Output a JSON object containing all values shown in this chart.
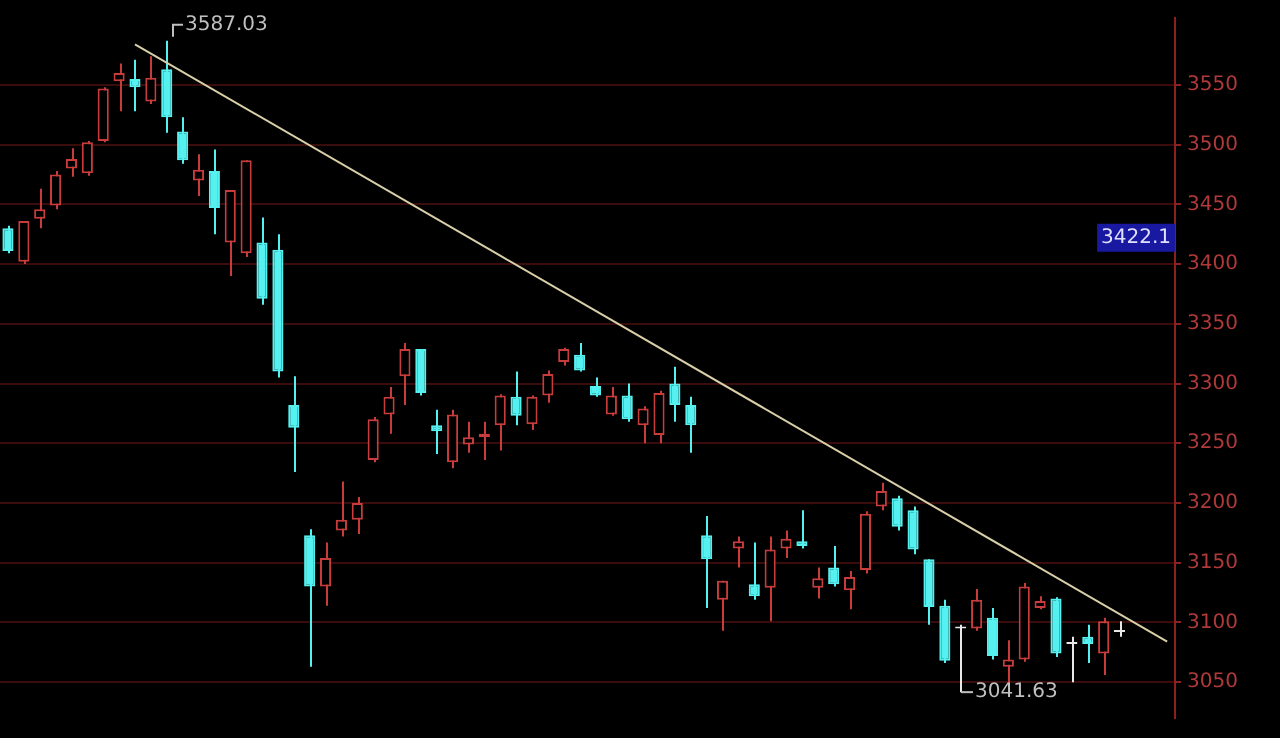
{
  "chart_data": {
    "type": "candlestick",
    "categories": [
      null,
      null,
      null,
      null,
      null,
      null,
      null,
      null,
      null,
      null,
      null,
      null,
      null,
      null,
      null,
      null,
      null,
      null,
      null,
      null,
      null,
      null,
      null,
      null,
      null,
      null,
      null,
      null,
      null,
      null,
      null,
      null,
      null,
      null,
      null,
      null,
      null,
      null,
      null,
      null,
      null,
      null,
      null,
      null,
      null,
      null,
      null,
      null,
      null,
      null,
      null,
      null,
      null,
      null,
      null,
      null,
      null,
      null,
      null,
      null,
      null,
      null,
      null,
      null,
      null,
      null,
      null,
      null,
      null,
      null,
      null,
      null,
      null,
      null
    ],
    "ohlc": [
      [
        3430,
        3432,
        3409,
        3411
      ],
      [
        3402,
        3436,
        3400,
        3436
      ],
      [
        3438,
        3463,
        3430,
        3446
      ],
      [
        3449,
        3478,
        3446,
        3475
      ],
      [
        3480,
        3497,
        3473,
        3488
      ],
      [
        3476,
        3503,
        3474,
        3502
      ],
      [
        3503,
        3548,
        3502,
        3547
      ],
      [
        3553,
        3568,
        3528,
        3560
      ],
      [
        3555,
        3571,
        3528,
        3548
      ],
      [
        3536,
        3574,
        3534,
        3556
      ],
      [
        3563,
        3587.03,
        3510,
        3523
      ],
      [
        3511,
        3523,
        3484,
        3487
      ],
      [
        3470,
        3492,
        3457,
        3479
      ],
      [
        3478,
        3496,
        3425,
        3447
      ],
      [
        3418,
        3462,
        3390,
        3462
      ],
      [
        3409,
        3487,
        3406,
        3487
      ],
      [
        3418,
        3439,
        3366,
        3371
      ],
      [
        3412,
        3425,
        3305,
        3310
      ],
      [
        3282,
        3306,
        3226,
        3263
      ],
      [
        3173,
        3178,
        3063,
        3130
      ],
      [
        3130,
        3167,
        3114,
        3154
      ],
      [
        3177,
        3218,
        3172,
        3186
      ],
      [
        3186,
        3205,
        3174,
        3200
      ],
      [
        3236,
        3272,
        3234,
        3270
      ],
      [
        3274,
        3297,
        3258,
        3289
      ],
      [
        3306,
        3334,
        3282,
        3329
      ],
      [
        3329,
        3329,
        3290,
        3292
      ],
      [
        3265,
        3278,
        3241,
        3260
      ],
      [
        3234,
        3278,
        3229,
        3274
      ],
      [
        3249,
        3268,
        3242,
        3255
      ],
      [
        3255,
        3268,
        3236,
        3258
      ],
      [
        3265,
        3291,
        3244,
        3290
      ],
      [
        3289,
        3310,
        3265,
        3273
      ],
      [
        3266,
        3290,
        3261,
        3289
      ],
      [
        3290,
        3311,
        3284,
        3308
      ],
      [
        3318,
        3330,
        3315,
        3329
      ],
      [
        3324,
        3334,
        3310,
        3311
      ],
      [
        3298,
        3305,
        3289,
        3290
      ],
      [
        3274,
        3297,
        3273,
        3290
      ],
      [
        3290,
        3300,
        3268,
        3270
      ],
      [
        3265,
        3281,
        3250,
        3279
      ],
      [
        3257,
        3294,
        3250,
        3292
      ],
      [
        3300,
        3314,
        3268,
        3282
      ],
      [
        3282,
        3289,
        3242,
        3265
      ],
      [
        3173,
        3189,
        3112,
        3153
      ],
      [
        3119,
        3135,
        3093,
        3135
      ],
      [
        3162,
        3172,
        3146,
        3168
      ],
      [
        3132,
        3167,
        3119,
        3122
      ],
      [
        3129,
        3172,
        3101,
        3161
      ],
      [
        3162,
        3177,
        3154,
        3170
      ],
      [
        3168,
        3194,
        3162,
        3164
      ],
      [
        3129,
        3146,
        3120,
        3137
      ],
      [
        3146,
        3164,
        3130,
        3132
      ],
      [
        3127,
        3143,
        3111,
        3138
      ],
      [
        3144,
        3193,
        3141,
        3191
      ],
      [
        3197,
        3217,
        3194,
        3210
      ],
      [
        3204,
        3206,
        3177,
        3180
      ],
      [
        3194,
        3197,
        3157,
        3161
      ],
      [
        3153,
        3153,
        3098,
        3113
      ],
      [
        3114,
        3119,
        3066,
        3068
      ],
      [
        3095,
        3098,
        3041.63,
        3095
      ],
      [
        3095,
        3128,
        3093,
        3119
      ],
      [
        3104,
        3112,
        3069,
        3072
      ],
      [
        3063,
        3085,
        3046,
        3069
      ],
      [
        3069,
        3133,
        3067,
        3130
      ],
      [
        3112,
        3122,
        3111,
        3118
      ],
      [
        3120,
        3121,
        3071,
        3074
      ],
      [
        3082,
        3088,
        3050,
        3082
      ],
      [
        3088,
        3098,
        3066,
        3082
      ],
      [
        3074,
        3104,
        3056,
        3101
      ],
      [
        3092,
        3101,
        3088,
        3092
      ],
      null,
      null,
      null
    ],
    "colors": [
      "#55f0f0",
      "#c83c3c",
      "#c83c3c",
      "#c83c3c",
      "#c83c3c",
      "#c83c3c",
      "#c83c3c",
      "#c83c3c",
      "#55f0f0",
      "#c83c3c",
      "#55f0f0",
      "#55f0f0",
      "#c83c3c",
      "#55f0f0",
      "#c83c3c",
      "#c83c3c",
      "#55f0f0",
      "#55f0f0",
      "#55f0f0",
      "#55f0f0",
      "#c83c3c",
      "#c83c3c",
      "#c83c3c",
      "#c83c3c",
      "#c83c3c",
      "#c83c3c",
      "#55f0f0",
      "#55f0f0",
      "#c83c3c",
      "#c83c3c",
      "#c83c3c",
      "#c83c3c",
      "#55f0f0",
      "#c83c3c",
      "#c83c3c",
      "#c83c3c",
      "#55f0f0",
      "#55f0f0",
      "#c83c3c",
      "#55f0f0",
      "#c83c3c",
      "#c83c3c",
      "#55f0f0",
      "#55f0f0",
      "#55f0f0",
      "#c83c3c",
      "#c83c3c",
      "#55f0f0",
      "#c83c3c",
      "#c83c3c",
      "#55f0f0",
      "#c83c3c",
      "#55f0f0",
      "#c83c3c",
      "#c83c3c",
      "#c83c3c",
      "#55f0f0",
      "#55f0f0",
      "#55f0f0",
      "#55f0f0",
      "#e8e8e8",
      "#c83c3c",
      "#55f0f0",
      "#c83c3c",
      "#c83c3c",
      "#c83c3c",
      "#55f0f0",
      "#e8e8e8",
      "#55f0f0",
      "#c83c3c",
      "#e8e8e8",
      null,
      null,
      null
    ],
    "series": [
      {
        "type": "line",
        "color": "#d9cfa8",
        "values": [
          null,
          null,
          null,
          null,
          null,
          null,
          null,
          null,
          3584,
          null,
          null,
          null,
          null,
          null,
          null,
          null,
          null,
          null,
          null,
          null,
          null,
          null,
          null,
          null,
          null,
          null,
          null,
          null,
          null,
          null,
          null,
          null,
          null,
          null,
          null,
          null,
          null,
          null,
          null,
          null,
          null,
          null,
          null,
          null,
          null,
          null,
          null,
          null,
          null,
          null,
          null,
          null,
          null,
          null,
          null,
          null,
          null,
          null,
          null,
          null,
          null,
          null,
          null,
          null,
          null,
          null,
          null,
          null,
          null,
          null,
          null,
          null,
          null,
          3084
        ]
      }
    ],
    "ylim": [
      3020,
      3606
    ],
    "yticks": [
      3050,
      3100,
      3150,
      3200,
      3250,
      3300,
      3350,
      3400,
      3450,
      3500,
      3550
    ],
    "grid": "y",
    "tick_labels": "y",
    "annotations": [
      "3587.03",
      "3041.63",
      "3422.1"
    ]
  }
}
